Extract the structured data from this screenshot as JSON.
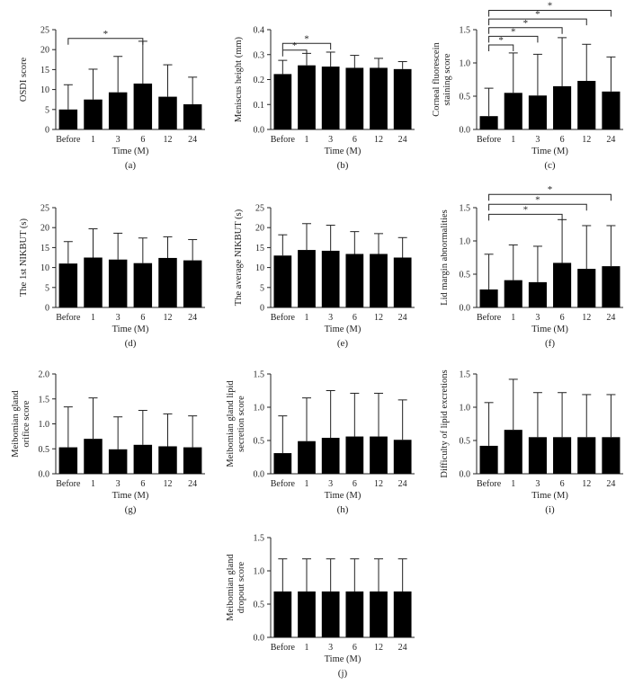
{
  "chart_data": [
    {
      "type": "bar",
      "panel_label": "(a)",
      "ylabel": [
        "OSDI score"
      ],
      "xlabel": "Time (M)",
      "categories": [
        "Before",
        "1",
        "3",
        "6",
        "12",
        "24"
      ],
      "values": [
        5,
        7.5,
        9.3,
        11.5,
        8.2,
        6.3
      ],
      "errors": [
        6.2,
        7.6,
        9.0,
        10.6,
        8.0,
        6.8
      ],
      "ylim": [
        0,
        25
      ],
      "yticks": [
        "0",
        "5",
        "10",
        "15",
        "20",
        "25"
      ],
      "ytick_values": [
        0,
        5,
        10,
        15,
        20,
        25
      ],
      "significance": [
        {
          "from": 0,
          "to": 3,
          "y": 22.8,
          "label": "*"
        }
      ]
    },
    {
      "type": "bar",
      "panel_label": "(b)",
      "ylabel": [
        "Meniscus height (mm)"
      ],
      "xlabel": "Time (M)",
      "categories": [
        "Before",
        "1",
        "3",
        "6",
        "12",
        "24"
      ],
      "values": [
        0.222,
        0.257,
        0.252,
        0.247,
        0.247,
        0.242
      ],
      "errors": [
        0.055,
        0.048,
        0.058,
        0.05,
        0.038,
        0.03
      ],
      "ylim": [
        0,
        0.4
      ],
      "yticks": [
        "0.0",
        "0.1",
        "0.2",
        "0.3",
        "0.4"
      ],
      "ytick_values": [
        0,
        0.1,
        0.2,
        0.3,
        0.4
      ],
      "significance": [
        {
          "from": 0,
          "to": 1,
          "y": 0.318,
          "label": "*"
        },
        {
          "from": 0,
          "to": 2,
          "y": 0.345,
          "label": "*"
        }
      ]
    },
    {
      "type": "bar",
      "panel_label": "(c)",
      "ylabel": [
        "Corneal fluorescein",
        "staining score"
      ],
      "xlabel": "Time (M)",
      "categories": [
        "Before",
        "1",
        "3",
        "6",
        "12",
        "24"
      ],
      "values": [
        0.2,
        0.55,
        0.51,
        0.65,
        0.73,
        0.57
      ],
      "errors": [
        0.42,
        0.6,
        0.62,
        0.73,
        0.55,
        0.52
      ],
      "ylim": [
        0,
        1.5
      ],
      "yticks": [
        "0.0",
        "0.5",
        "1.0",
        "1.5"
      ],
      "ytick_values": [
        0,
        0.5,
        1,
        1.5
      ],
      "significance": [
        {
          "from": 0,
          "to": 1,
          "y": 1.27,
          "label": "*"
        },
        {
          "from": 0,
          "to": 2,
          "y": 1.4,
          "label": "*"
        },
        {
          "from": 0,
          "to": 3,
          "y": 1.53,
          "label": "*"
        },
        {
          "from": 0,
          "to": 4,
          "y": 1.66,
          "label": "*"
        },
        {
          "from": 0,
          "to": 5,
          "y": 1.79,
          "label": "*"
        }
      ]
    },
    {
      "type": "bar",
      "panel_label": "(d)",
      "ylabel": [
        "The 1st NIKBUT (s)"
      ],
      "xlabel": "Time (M)",
      "categories": [
        "Before",
        "1",
        "3",
        "6",
        "12",
        "24"
      ],
      "values": [
        11,
        12.5,
        12,
        11.1,
        12.4,
        11.8
      ],
      "errors": [
        5.5,
        7.2,
        6.6,
        6.3,
        5.3,
        5.2
      ],
      "ylim": [
        0,
        25
      ],
      "yticks": [
        "0",
        "5",
        "10",
        "15",
        "20",
        "25"
      ],
      "ytick_values": [
        0,
        5,
        10,
        15,
        20,
        25
      ],
      "significance": []
    },
    {
      "type": "bar",
      "panel_label": "(e)",
      "ylabel": [
        "The average NIKBUT (s)"
      ],
      "xlabel": "Time (M)",
      "categories": [
        "Before",
        "1",
        "3",
        "6",
        "12",
        "24"
      ],
      "values": [
        13,
        14.4,
        14.2,
        13.4,
        13.4,
        12.5
      ],
      "errors": [
        5.2,
        6.6,
        6.4,
        5.6,
        5.1,
        5.0
      ],
      "ylim": [
        0,
        25
      ],
      "yticks": [
        "0",
        "5",
        "10",
        "15",
        "20",
        "25"
      ],
      "ytick_values": [
        0,
        5,
        10,
        15,
        20,
        25
      ],
      "significance": []
    },
    {
      "type": "bar",
      "panel_label": "(f)",
      "ylabel": [
        "Lid margin abnormalities"
      ],
      "xlabel": "Time (M)",
      "categories": [
        "Before",
        "1",
        "3",
        "6",
        "12",
        "24"
      ],
      "values": [
        0.27,
        0.41,
        0.38,
        0.67,
        0.58,
        0.62
      ],
      "errors": [
        0.53,
        0.53,
        0.54,
        0.65,
        0.65,
        0.61
      ],
      "ylim": [
        0,
        1.5
      ],
      "yticks": [
        "0.0",
        "0.5",
        "1.0",
        "1.5"
      ],
      "ytick_values": [
        0,
        0.5,
        1,
        1.5
      ],
      "significance": [
        {
          "from": 0,
          "to": 3,
          "y": 1.4,
          "label": "*"
        },
        {
          "from": 0,
          "to": 4,
          "y": 1.55,
          "label": "*"
        },
        {
          "from": 0,
          "to": 5,
          "y": 1.7,
          "label": "*"
        }
      ]
    },
    {
      "type": "bar",
      "panel_label": "(g)",
      "ylabel": [
        "Meibomian gland",
        "orifice score"
      ],
      "xlabel": "Time (M)",
      "categories": [
        "Before",
        "1",
        "3",
        "6",
        "12",
        "24"
      ],
      "values": [
        0.53,
        0.7,
        0.49,
        0.58,
        0.55,
        0.53
      ],
      "errors": [
        0.81,
        0.82,
        0.65,
        0.69,
        0.65,
        0.63
      ],
      "ylim": [
        0,
        2.0
      ],
      "yticks": [
        "0.0",
        "0.5",
        "1.0",
        "1.5",
        "2.0"
      ],
      "ytick_values": [
        0,
        0.5,
        1,
        1.5,
        2
      ],
      "significance": []
    },
    {
      "type": "bar",
      "panel_label": "(h)",
      "ylabel": [
        "Meibomian gland lipid",
        "secretion score"
      ],
      "xlabel": "Time (M)",
      "categories": [
        "Before",
        "1",
        "3",
        "6",
        "12",
        "24"
      ],
      "values": [
        0.31,
        0.49,
        0.54,
        0.56,
        0.56,
        0.51
      ],
      "errors": [
        0.56,
        0.65,
        0.71,
        0.65,
        0.65,
        0.6
      ],
      "ylim": [
        0,
        1.5
      ],
      "yticks": [
        "0.0",
        "0.5",
        "1.0",
        "1.5"
      ],
      "ytick_values": [
        0,
        0.5,
        1,
        1.5
      ],
      "significance": []
    },
    {
      "type": "bar",
      "panel_label": "(i)",
      "ylabel": [
        "Difficulty of lipid excretions"
      ],
      "xlabel": "Time (M)",
      "categories": [
        "Before",
        "1",
        "3",
        "6",
        "12",
        "24"
      ],
      "values": [
        0.42,
        0.66,
        0.55,
        0.55,
        0.55,
        0.55
      ],
      "errors": [
        0.65,
        0.76,
        0.67,
        0.67,
        0.64,
        0.64
      ],
      "ylim": [
        0,
        1.5
      ],
      "yticks": [
        "0.0",
        "0.5",
        "1.0",
        "1.5"
      ],
      "ytick_values": [
        0,
        0.5,
        1,
        1.5
      ],
      "significance": []
    },
    {
      "type": "bar",
      "panel_label": "(j)",
      "ylabel": [
        "Meibomian gland",
        "dropout score"
      ],
      "xlabel": "Time (M)",
      "categories": [
        "Before",
        "1",
        "3",
        "6",
        "12",
        "24"
      ],
      "values": [
        0.69,
        0.69,
        0.69,
        0.69,
        0.69,
        0.69
      ],
      "errors": [
        0.49,
        0.49,
        0.49,
        0.49,
        0.49,
        0.49
      ],
      "ylim": [
        0,
        1.5
      ],
      "yticks": [
        "0.0",
        "0.5",
        "1.0",
        "1.5"
      ],
      "ytick_values": [
        0,
        0.5,
        1,
        1.5
      ],
      "significance": []
    }
  ]
}
